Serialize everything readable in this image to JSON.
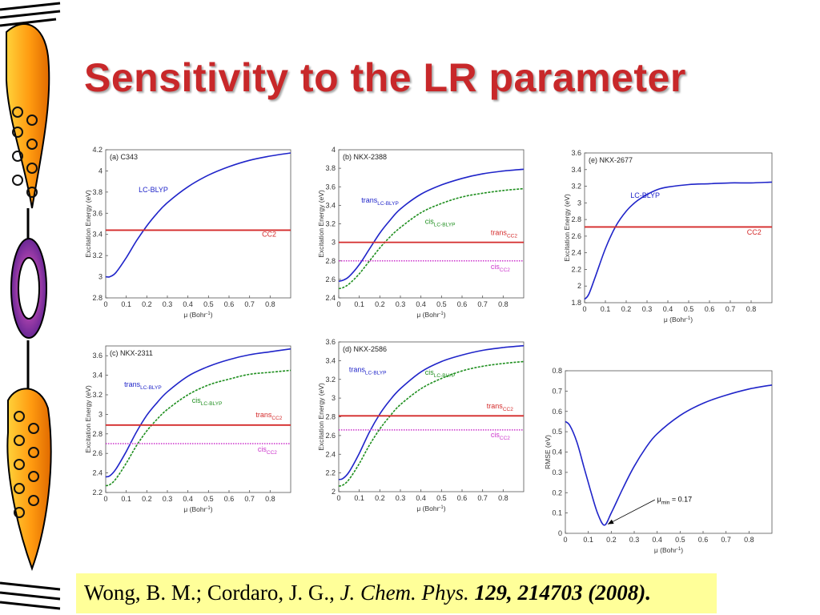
{
  "slide": {
    "title": "Sensitivity to the LR parameter",
    "citation": {
      "authors": "Wong, B. M.; Cordaro, J. G., ",
      "journal": "J. Chem. Phys.",
      "volume_pages_year": " 129, 214703 (2008)."
    }
  },
  "colors": {
    "lc_blyp": "#1f24c9",
    "cis_lc_blyp": "#1f8f1f",
    "cc2": "#d42a2a",
    "cis_cc2": "#cc33cc",
    "title": "#c8282a"
  },
  "chart_data": [
    {
      "type": "line",
      "panel_label": "(a) C343",
      "xlabel_pre": "μ (Bohr",
      "xlabel_sup": "-1",
      "xlabel_post": ")",
      "ylabel": "Excitation Energy (eV)",
      "xlim": [
        0,
        0.9
      ],
      "ylim": [
        2.8,
        4.2
      ],
      "x_ticks": [
        0,
        0.1,
        0.2,
        0.3,
        0.4,
        0.5,
        0.6,
        0.7,
        0.8
      ],
      "y_ticks": [
        2.8,
        3,
        3.2,
        3.4,
        3.6,
        3.8,
        4,
        4.2
      ],
      "series": [
        {
          "kind": "curve",
          "style": "solid",
          "color": "#1f24c9",
          "x": [
            0,
            0.02,
            0.05,
            0.1,
            0.15,
            0.2,
            0.25,
            0.3,
            0.4,
            0.5,
            0.6,
            0.7,
            0.8,
            0.9
          ],
          "y": [
            3.0,
            3.0,
            3.04,
            3.18,
            3.34,
            3.48,
            3.6,
            3.7,
            3.85,
            3.96,
            4.04,
            4.1,
            4.14,
            4.17
          ]
        },
        {
          "kind": "hline",
          "style": "solid",
          "color": "#d42a2a",
          "y": 3.44
        }
      ],
      "annotations": [
        {
          "main": "LC-BLYP",
          "sub": "",
          "color": "#1f24c9",
          "x": 0.16,
          "y": 3.8
        },
        {
          "main": "CC2",
          "sub": "",
          "color": "#d42a2a",
          "x": 0.76,
          "y": 3.38
        }
      ]
    },
    {
      "type": "line",
      "panel_label": "(b) NKX-2388",
      "xlabel_pre": "μ (Bohr",
      "xlabel_sup": "-1",
      "xlabel_post": ")",
      "ylabel": "Excitation Energy (eV)",
      "xlim": [
        0,
        0.9
      ],
      "ylim": [
        2.4,
        4.0
      ],
      "x_ticks": [
        0,
        0.1,
        0.2,
        0.3,
        0.4,
        0.5,
        0.6,
        0.7,
        0.8
      ],
      "y_ticks": [
        2.4,
        2.6,
        2.8,
        3,
        3.2,
        3.4,
        3.6,
        3.8,
        4
      ],
      "series": [
        {
          "kind": "curve",
          "style": "solid",
          "color": "#1f24c9",
          "x": [
            0,
            0.02,
            0.05,
            0.1,
            0.15,
            0.2,
            0.25,
            0.3,
            0.4,
            0.5,
            0.6,
            0.7,
            0.8,
            0.9
          ],
          "y": [
            2.58,
            2.59,
            2.63,
            2.76,
            2.93,
            3.1,
            3.24,
            3.36,
            3.52,
            3.62,
            3.69,
            3.74,
            3.77,
            3.79
          ]
        },
        {
          "kind": "curve",
          "style": "dashed",
          "color": "#1f8f1f",
          "x": [
            0,
            0.02,
            0.05,
            0.1,
            0.15,
            0.2,
            0.25,
            0.3,
            0.4,
            0.5,
            0.6,
            0.7,
            0.8,
            0.9
          ],
          "y": [
            2.5,
            2.51,
            2.55,
            2.66,
            2.8,
            2.94,
            3.06,
            3.16,
            3.32,
            3.42,
            3.49,
            3.53,
            3.56,
            3.58
          ]
        },
        {
          "kind": "hline",
          "style": "solid",
          "color": "#d42a2a",
          "y": 3.0
        },
        {
          "kind": "hline",
          "style": "dotted",
          "color": "#cc33cc",
          "y": 2.8
        }
      ],
      "annotations": [
        {
          "main": "trans",
          "sub": "LC-BLYP",
          "color": "#1f24c9",
          "x": 0.11,
          "y": 3.43
        },
        {
          "main": "cis",
          "sub": "LC-BLYP",
          "color": "#1f8f1f",
          "x": 0.42,
          "y": 3.2
        },
        {
          "main": "trans",
          "sub": "CC2",
          "color": "#d42a2a",
          "x": 0.74,
          "y": 3.08
        },
        {
          "main": "cis",
          "sub": "CC2",
          "color": "#cc33cc",
          "x": 0.74,
          "y": 2.71
        }
      ]
    },
    {
      "type": "line",
      "panel_label": "(e) NKX-2677",
      "xlabel_pre": "μ (Bohr",
      "xlabel_sup": "-1",
      "xlabel_post": ")",
      "ylabel": "Excitation Energy (eV)",
      "xlim": [
        0,
        0.9
      ],
      "ylim": [
        1.8,
        3.6
      ],
      "x_ticks": [
        0,
        0.1,
        0.2,
        0.3,
        0.4,
        0.5,
        0.6,
        0.7,
        0.8
      ],
      "y_ticks": [
        1.8,
        2,
        2.2,
        2.4,
        2.6,
        2.8,
        3,
        3.2,
        3.4,
        3.6
      ],
      "series": [
        {
          "kind": "curve",
          "style": "solid",
          "color": "#1f24c9",
          "x": [
            0,
            0.02,
            0.05,
            0.1,
            0.15,
            0.2,
            0.25,
            0.3,
            0.35,
            0.4,
            0.5,
            0.6,
            0.7,
            0.8,
            0.9
          ],
          "y": [
            1.84,
            1.9,
            2.1,
            2.45,
            2.72,
            2.9,
            3.02,
            3.1,
            3.16,
            3.19,
            3.22,
            3.23,
            3.24,
            3.24,
            3.25
          ]
        },
        {
          "kind": "hline",
          "style": "solid",
          "color": "#d42a2a",
          "y": 2.71
        }
      ],
      "annotations": [
        {
          "main": "LC-BLYP",
          "sub": "",
          "color": "#1f24c9",
          "x": 0.22,
          "y": 3.06
        },
        {
          "main": "CC2",
          "sub": "",
          "color": "#d42a2a",
          "x": 0.78,
          "y": 2.62
        }
      ]
    },
    {
      "type": "line",
      "panel_label": "(c) NKX-2311",
      "xlabel_pre": "μ (Bohr",
      "xlabel_sup": "-1",
      "xlabel_post": ")",
      "ylabel": "Excitation Energy (eV)",
      "xlim": [
        0,
        0.9
      ],
      "ylim": [
        2.2,
        3.7
      ],
      "x_ticks": [
        0,
        0.1,
        0.2,
        0.3,
        0.4,
        0.5,
        0.6,
        0.7,
        0.8
      ],
      "y_ticks": [
        2.2,
        2.4,
        2.6,
        2.8,
        3,
        3.2,
        3.4,
        3.6
      ],
      "series": [
        {
          "kind": "curve",
          "style": "solid",
          "color": "#1f24c9",
          "x": [
            0,
            0.02,
            0.05,
            0.1,
            0.15,
            0.2,
            0.25,
            0.3,
            0.4,
            0.5,
            0.6,
            0.7,
            0.8,
            0.9
          ],
          "y": [
            2.36,
            2.37,
            2.44,
            2.62,
            2.82,
            2.99,
            3.12,
            3.23,
            3.39,
            3.49,
            3.56,
            3.61,
            3.64,
            3.67
          ]
        },
        {
          "kind": "curve",
          "style": "dashed",
          "color": "#1f8f1f",
          "x": [
            0,
            0.02,
            0.05,
            0.1,
            0.15,
            0.2,
            0.25,
            0.3,
            0.4,
            0.5,
            0.6,
            0.7,
            0.8,
            0.9
          ],
          "y": [
            2.27,
            2.28,
            2.34,
            2.5,
            2.68,
            2.83,
            2.95,
            3.05,
            3.2,
            3.3,
            3.36,
            3.41,
            3.43,
            3.45
          ]
        },
        {
          "kind": "hline",
          "style": "solid",
          "color": "#d42a2a",
          "y": 2.89
        },
        {
          "kind": "hline",
          "style": "dotted",
          "color": "#cc33cc",
          "y": 2.7
        }
      ],
      "annotations": [
        {
          "main": "trans",
          "sub": "LC-BLYP",
          "color": "#1f24c9",
          "x": 0.09,
          "y": 3.28
        },
        {
          "main": "cis",
          "sub": "LC-BLYP",
          "color": "#1f8f1f",
          "x": 0.42,
          "y": 3.12
        },
        {
          "main": "trans",
          "sub": "CC2",
          "color": "#d42a2a",
          "x": 0.73,
          "y": 2.97
        },
        {
          "main": "cis",
          "sub": "CC2",
          "color": "#cc33cc",
          "x": 0.74,
          "y": 2.62
        }
      ]
    },
    {
      "type": "line",
      "panel_label": "(d) NKX-2586",
      "xlabel_pre": "μ (Bohr",
      "xlabel_sup": "-1",
      "xlabel_post": ")",
      "ylabel": "Excitation Energy (eV)",
      "xlim": [
        0,
        0.9
      ],
      "ylim": [
        2.0,
        3.6
      ],
      "x_ticks": [
        0,
        0.1,
        0.2,
        0.3,
        0.4,
        0.5,
        0.6,
        0.7,
        0.8
      ],
      "y_ticks": [
        2,
        2.2,
        2.4,
        2.6,
        2.8,
        3,
        3.2,
        3.4,
        3.6
      ],
      "series": [
        {
          "kind": "curve",
          "style": "solid",
          "color": "#1f24c9",
          "x": [
            0,
            0.02,
            0.05,
            0.1,
            0.15,
            0.2,
            0.25,
            0.3,
            0.4,
            0.5,
            0.6,
            0.7,
            0.8,
            0.9
          ],
          "y": [
            2.13,
            2.14,
            2.21,
            2.41,
            2.64,
            2.83,
            2.98,
            3.1,
            3.28,
            3.39,
            3.46,
            3.51,
            3.54,
            3.56
          ]
        },
        {
          "kind": "curve",
          "style": "dashed",
          "color": "#1f8f1f",
          "x": [
            0,
            0.02,
            0.05,
            0.1,
            0.15,
            0.2,
            0.25,
            0.3,
            0.4,
            0.5,
            0.6,
            0.7,
            0.8,
            0.9
          ],
          "y": [
            2.06,
            2.07,
            2.13,
            2.3,
            2.5,
            2.67,
            2.81,
            2.93,
            3.1,
            3.21,
            3.29,
            3.34,
            3.37,
            3.39
          ]
        },
        {
          "kind": "hline",
          "style": "solid",
          "color": "#d42a2a",
          "y": 2.81
        },
        {
          "kind": "hline",
          "style": "dotted",
          "color": "#cc33cc",
          "y": 2.66
        }
      ],
      "annotations": [
        {
          "main": "trans",
          "sub": "LC-BLYP",
          "color": "#1f24c9",
          "x": 0.05,
          "y": 3.28
        },
        {
          "main": "cis",
          "sub": "LC-BLYP",
          "color": "#1f8f1f",
          "x": 0.42,
          "y": 3.25
        },
        {
          "main": "trans",
          "sub": "CC2",
          "color": "#d42a2a",
          "x": 0.72,
          "y": 2.89
        },
        {
          "main": "cis",
          "sub": "CC2",
          "color": "#cc33cc",
          "x": 0.74,
          "y": 2.58
        }
      ]
    },
    {
      "type": "line",
      "panel_label": "",
      "xlabel_pre": "μ (Bohr",
      "xlabel_sup": "-1",
      "xlabel_post": ")",
      "ylabel": "RMSE (eV)",
      "xlim": [
        0,
        0.9
      ],
      "ylim": [
        0,
        0.8
      ],
      "x_ticks": [
        0,
        0.1,
        0.2,
        0.3,
        0.4,
        0.5,
        0.6,
        0.7,
        0.8
      ],
      "y_ticks": [
        0,
        0.1,
        0.2,
        0.3,
        0.4,
        0.5,
        0.6,
        0.7,
        0.8
      ],
      "series": [
        {
          "kind": "curve",
          "style": "solid",
          "color": "#1f24c9",
          "x": [
            0,
            0.02,
            0.05,
            0.08,
            0.11,
            0.14,
            0.17,
            0.2,
            0.25,
            0.3,
            0.35,
            0.4,
            0.5,
            0.6,
            0.7,
            0.8,
            0.9
          ],
          "y": [
            0.55,
            0.53,
            0.45,
            0.33,
            0.21,
            0.1,
            0.04,
            0.1,
            0.22,
            0.33,
            0.42,
            0.49,
            0.58,
            0.64,
            0.68,
            0.71,
            0.73
          ]
        }
      ],
      "annotations": [
        {
          "main": "μ",
          "sub": "min",
          "post": " = 0.17",
          "color": "#000000",
          "x": 0.4,
          "y": 0.155
        }
      ],
      "arrow": {
        "from": [
          0.39,
          0.165
        ],
        "to": [
          0.185,
          0.045
        ]
      }
    }
  ]
}
